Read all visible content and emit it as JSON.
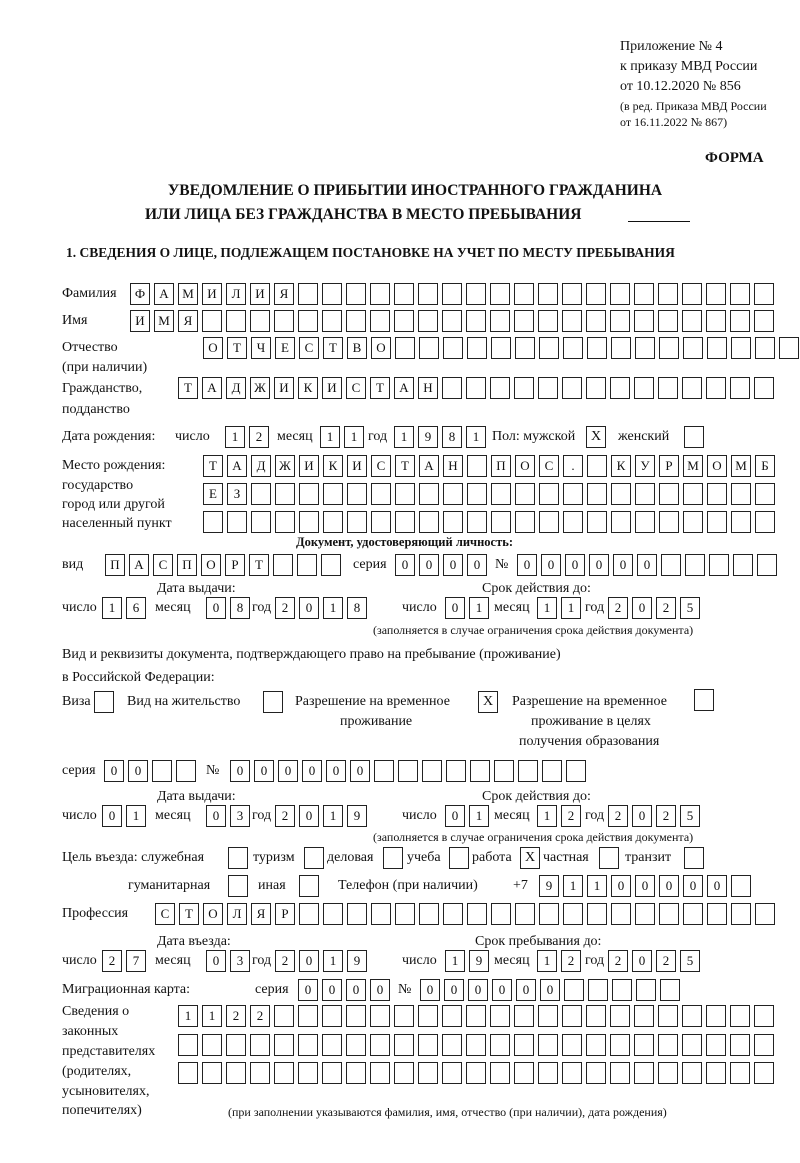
{
  "header": {
    "appendix": "Приложение № 4",
    "order": "к приказу МВД России",
    "order_date": "от 10.12.2020 № 856",
    "edition1": "(в ред. Приказа МВД России",
    "edition2": "от 16.11.2022 № 867)",
    "form_label": "ФОРМА",
    "title1": "УВЕДОМЛЕНИЕ О ПРИБЫТИИ ИНОСТРАННОГО ГРАЖДАНИНА",
    "title2": "ИЛИ ЛИЦА БЕЗ ГРАЖДАНСТВА В МЕСТО ПРЕБЫВАНИЯ",
    "section1": "1. СВЕДЕНИЯ О ЛИЦЕ, ПОДЛЕЖАЩЕМ ПОСТАНОВКЕ НА УЧЕТ ПО МЕСТУ ПРЕБЫВАНИЯ"
  },
  "labels": {
    "surname": "Фамилия",
    "name": "Имя",
    "patronymic": "Отчество",
    "patronymic_note": "(при наличии)",
    "citizenship": "Гражданство,",
    "citizenship2": "подданство",
    "birth_date": "Дата рождения:",
    "day": "число",
    "month": "месяц",
    "year": "год",
    "sex_male": "Пол: мужской",
    "sex_female": "женский",
    "birthplace1": "Место рождения:",
    "birthplace2": "государство",
    "birthplace3": "город или другой",
    "birthplace4": "населенный пункт",
    "id_doc": "Документ, удостоверяющий личность:",
    "kind": "вид",
    "series": "серия",
    "number": "№",
    "issue_date": "Дата выдачи:",
    "valid_until": "Срок действия до:",
    "validity_note": "(заполняется в случае ограничения срока действия документа)",
    "right_doc1": "Вид и реквизиты документа, подтверждающего право на пребывание (проживание)",
    "right_doc2": "в Российской Федерации:",
    "visa": "Виза",
    "residence": "Вид на жительство",
    "temp_res1": "Разрешение на временное",
    "temp_res2": "проживание",
    "temp_edu1": "Разрешение на временное",
    "temp_edu2": "проживание в целях",
    "temp_edu3": "получения образования",
    "purpose": "Цель въезда: служебная",
    "tourism": "туризм",
    "business": "деловая",
    "study": "учеба",
    "work": "работа",
    "private": "частная",
    "transit": "транзит",
    "humanitarian": "гуманитарная",
    "other": "иная",
    "phone": "Телефон (при наличии)",
    "phone_prefix": "+7",
    "profession": "Профессия",
    "entry_date": "Дата въезда:",
    "stay_until": "Срок пребывания до:",
    "migration_card": "Миграционная карта:",
    "reps1": "Сведения о",
    "reps2": "законных",
    "reps3": "представителях",
    "reps4": "(родителях,",
    "reps5": "усыновителях,",
    "reps6": "попечителях)",
    "reps_note": "(при заполнении указываются фамилия, имя, отчество (при наличии), дата рождения)"
  },
  "fields": {
    "surname": [
      "Ф",
      "А",
      "М",
      "И",
      "Л",
      "И",
      "Я",
      "",
      "",
      "",
      "",
      "",
      "",
      "",
      "",
      "",
      "",
      "",
      "",
      "",
      "",
      "",
      "",
      "",
      "",
      "",
      ""
    ],
    "name": [
      "И",
      "М",
      "Я",
      "",
      "",
      "",
      "",
      "",
      "",
      "",
      "",
      "",
      "",
      "",
      "",
      "",
      "",
      "",
      "",
      "",
      "",
      "",
      "",
      "",
      "",
      "",
      ""
    ],
    "patronymic": [
      "О",
      "Т",
      "Ч",
      "Е",
      "С",
      "Т",
      "В",
      "О",
      "",
      "",
      "",
      "",
      "",
      "",
      "",
      "",
      "",
      "",
      "",
      "",
      "",
      "",
      "",
      "",
      ""
    ],
    "citizenship": [
      "Т",
      "А",
      "Д",
      "Ж",
      "И",
      "К",
      "И",
      "С",
      "Т",
      "А",
      "Н",
      "",
      "",
      "",
      "",
      "",
      "",
      "",
      "",
      "",
      "",
      "",
      "",
      "",
      ""
    ],
    "birth_day": [
      "1",
      "2"
    ],
    "birth_month": [
      "1",
      "1"
    ],
    "birth_year": [
      "1",
      "9",
      "8",
      "1"
    ],
    "sex_male": "X",
    "sex_female": "",
    "birthplace_1": [
      "Т",
      "А",
      "Д",
      "Ж",
      "И",
      "К",
      "И",
      "С",
      "Т",
      "А",
      "Н",
      "",
      "П",
      "О",
      "С",
      ".",
      "",
      "К",
      "У",
      "Р",
      "М",
      "О",
      "М",
      "Б"
    ],
    "birthplace_2": [
      "Е",
      "З",
      "",
      "",
      "",
      "",
      "",
      "",
      "",
      "",
      "",
      "",
      "",
      "",
      "",
      "",
      "",
      "",
      "",
      "",
      "",
      "",
      "",
      ""
    ],
    "birthplace_3": [
      "",
      "",
      "",
      "",
      "",
      "",
      "",
      "",
      "",
      "",
      "",
      "",
      "",
      "",
      "",
      "",
      "",
      "",
      "",
      "",
      "",
      "",
      "",
      ""
    ],
    "id_kind": [
      "П",
      "А",
      "С",
      "П",
      "О",
      "Р",
      "Т",
      "",
      "",
      ""
    ],
    "id_series": [
      "0",
      "0",
      "0",
      "0"
    ],
    "id_number": [
      "0",
      "0",
      "0",
      "0",
      "0",
      "0",
      "",
      "",
      "",
      "",
      ""
    ],
    "id_issue_day": [
      "1",
      "6"
    ],
    "id_issue_month": [
      "0",
      "8"
    ],
    "id_issue_year": [
      "2",
      "0",
      "1",
      "8"
    ],
    "id_valid_day": [
      "0",
      "1"
    ],
    "id_valid_month": [
      "1",
      "1"
    ],
    "id_valid_year": [
      "2",
      "0",
      "2",
      "5"
    ],
    "visa": "",
    "residence": "",
    "temp_res": "X",
    "temp_edu": "",
    "rd_series": [
      "0",
      "0",
      "",
      ""
    ],
    "rd_number": [
      "0",
      "0",
      "0",
      "0",
      "0",
      "0",
      "",
      "",
      "",
      "",
      "",
      "",
      "",
      "",
      ""
    ],
    "rd_issue_day": [
      "0",
      "1"
    ],
    "rd_issue_month": [
      "0",
      "3"
    ],
    "rd_issue_year": [
      "2",
      "0",
      "1",
      "9"
    ],
    "rd_valid_day": [
      "0",
      "1"
    ],
    "rd_valid_month": [
      "1",
      "2"
    ],
    "rd_valid_year": [
      "2",
      "0",
      "2",
      "5"
    ],
    "purpose_official": "",
    "purpose_tourism": "",
    "purpose_business": "",
    "purpose_study": "",
    "purpose_work": "X",
    "purpose_private": "",
    "purpose_transit": "",
    "purpose_humanitarian": "",
    "purpose_other": "",
    "phone": [
      "9",
      "1",
      "1",
      "0",
      "0",
      "0",
      "0",
      "0",
      ""
    ],
    "profession": [
      "С",
      "Т",
      "О",
      "Л",
      "Я",
      "Р",
      "",
      "",
      "",
      "",
      "",
      "",
      "",
      "",
      "",
      "",
      "",
      "",
      "",
      "",
      "",
      "",
      "",
      "",
      "",
      ""
    ],
    "entry_day": [
      "2",
      "7"
    ],
    "entry_month": [
      "0",
      "3"
    ],
    "entry_year": [
      "2",
      "0",
      "1",
      "9"
    ],
    "stay_day": [
      "1",
      "9"
    ],
    "stay_month": [
      "1",
      "2"
    ],
    "stay_year": [
      "2",
      "0",
      "2",
      "5"
    ],
    "mc_series": [
      "0",
      "0",
      "0",
      "0"
    ],
    "mc_number": [
      "0",
      "0",
      "0",
      "0",
      "0",
      "0",
      "",
      "",
      "",
      "",
      ""
    ],
    "reps_1": [
      "1",
      "1",
      "2",
      "2",
      "",
      "",
      "",
      "",
      "",
      "",
      "",
      "",
      "",
      "",
      "",
      "",
      "",
      "",
      "",
      "",
      "",
      "",
      "",
      "",
      ""
    ],
    "reps_2": [
      "",
      "",
      "",
      "",
      "",
      "",
      "",
      "",
      "",
      "",
      "",
      "",
      "",
      "",
      "",
      "",
      "",
      "",
      "",
      "",
      "",
      "",
      "",
      "",
      ""
    ],
    "reps_3": [
      "",
      "",
      "",
      "",
      "",
      "",
      "",
      "",
      "",
      "",
      "",
      "",
      "",
      "",
      "",
      "",
      "",
      "",
      "",
      "",
      "",
      "",
      "",
      "",
      ""
    ]
  }
}
